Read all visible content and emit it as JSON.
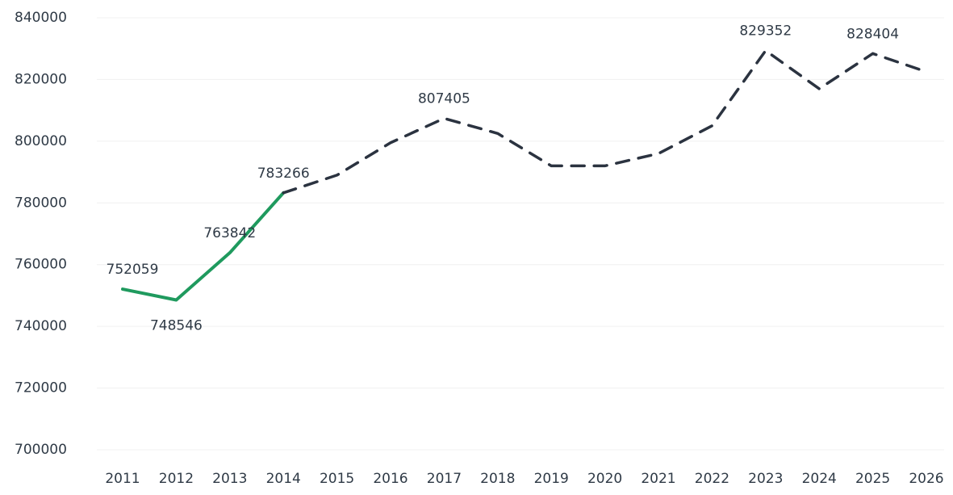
{
  "chart_data": {
    "type": "line",
    "categories": [
      "2011",
      "2012",
      "2013",
      "2014",
      "2015",
      "2016",
      "2017",
      "2018",
      "2019",
      "2020",
      "2021",
      "2022",
      "2023",
      "2024",
      "2025",
      "2026"
    ],
    "series": [
      {
        "color": "#1f9a5e",
        "dashed": false,
        "values": [
          752059,
          748546,
          763842,
          783266,
          null,
          null,
          null,
          null,
          null,
          null,
          null,
          null,
          null,
          null,
          null,
          null
        ],
        "value_labels": [
          "752059",
          "748546",
          "763842",
          "783266",
          null,
          null,
          null,
          null,
          null,
          null,
          null,
          null,
          null,
          null,
          null,
          null
        ]
      },
      {
        "color": "#2b3340",
        "dashed": true,
        "values": [
          null,
          null,
          null,
          783266,
          789000,
          799500,
          807405,
          802500,
          792000,
          792000,
          796000,
          805000,
          829352,
          817000,
          828404,
          822500
        ],
        "value_labels": [
          null,
          null,
          null,
          null,
          null,
          null,
          "807405",
          null,
          null,
          null,
          null,
          null,
          "829352",
          null,
          "828404",
          null
        ]
      }
    ],
    "ylim": [
      700000,
      840000
    ],
    "yticks": [
      700000,
      720000,
      740000,
      760000,
      780000,
      800000,
      820000,
      840000
    ],
    "grid": true
  }
}
